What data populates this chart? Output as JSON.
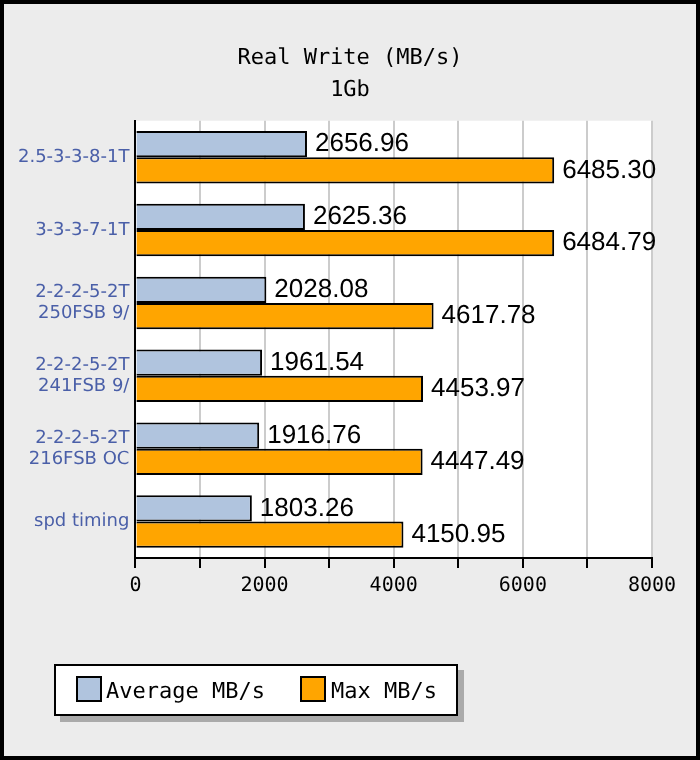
{
  "chart_data": {
    "type": "bar",
    "orientation": "horizontal",
    "subtitle": "Real Write (MB/s)",
    "annotations": [
      "1Gb"
    ],
    "categories": [
      "2.5-3-3-8-1T",
      "3-3-3-7-1T",
      "2-2-2-5-2T\n250FSB 9/",
      "2-2-2-5-2T\n241FSB 9/",
      "2-2-2-5-2T\n216FSB OC",
      "spd timing"
    ],
    "series": [
      {
        "name": "Average MB/s",
        "color": "#b0c4de",
        "values": [
          2656.96,
          2625.36,
          2028.08,
          1961.54,
          1916.76,
          1803.26
        ]
      },
      {
        "name": "Max MB/s",
        "color": "#ffa500",
        "values": [
          6485.3,
          6484.79,
          4617.78,
          4453.97,
          4447.49,
          4150.95
        ]
      }
    ],
    "value_labels": [
      [
        "2656.96",
        "2625.36",
        "2028.08",
        "1961.54",
        "1916.76",
        "1803.26"
      ],
      [
        "6485.30",
        "6484.79",
        "4617.78",
        "4453.97",
        "4447.49",
        "4150.95"
      ]
    ],
    "xlim": [
      0,
      8000
    ],
    "xticks": [
      0,
      {
        "value": 1000,
        "label": null
      },
      2000,
      {
        "value": 3000,
        "label": null
      },
      4000,
      {
        "value": 5000,
        "label": null
      },
      6000,
      {
        "value": 7000,
        "label": null
      },
      8000
    ],
    "grid": "x",
    "legend": "bottom"
  }
}
